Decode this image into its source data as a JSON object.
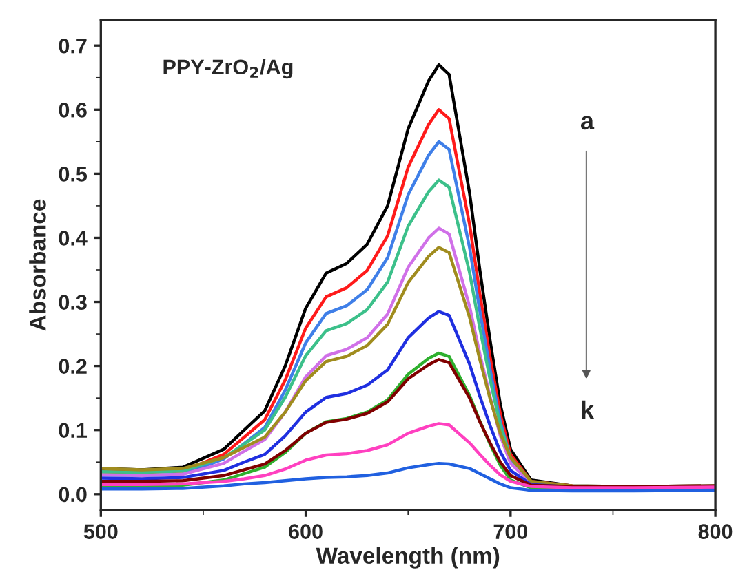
{
  "chart_data": {
    "type": "line",
    "xlabel": "Wavelength (nm)",
    "ylabel": "Absorbance",
    "xlim": [
      500,
      800
    ],
    "xticks": [
      500,
      600,
      700,
      800
    ],
    "ylim": [
      -0.025,
      0.74
    ],
    "yticks": [
      {
        "value": 0.0,
        "label": "0.0"
      },
      0.1,
      0.2,
      0.3,
      0.4,
      0.5,
      0.6,
      0.7
    ],
    "grid": false,
    "legend": false,
    "marker": "none",
    "line_style": "solid",
    "annotations": [
      "PPY-ZrO$_{2}$/Ag",
      "a",
      "k"
    ],
    "x": [
      500,
      520,
      540,
      560,
      570,
      580,
      590,
      600,
      610,
      620,
      630,
      640,
      650,
      660,
      665,
      670,
      680,
      685,
      690,
      695,
      700,
      710,
      730,
      760,
      800
    ],
    "series": [
      {
        "color": "#000000",
        "values": [
          0.04,
          0.038,
          0.042,
          0.07,
          0.1,
          0.13,
          0.2,
          0.29,
          0.345,
          0.36,
          0.39,
          0.45,
          0.57,
          0.645,
          0.67,
          0.655,
          0.47,
          0.35,
          0.24,
          0.14,
          0.07,
          0.022,
          0.013,
          0.012,
          0.013
        ]
      },
      {
        "color": "#ff1a1a",
        "values": [
          0.035,
          0.034,
          0.036,
          0.062,
          0.089,
          0.116,
          0.178,
          0.259,
          0.308,
          0.322,
          0.349,
          0.403,
          0.51,
          0.577,
          0.6,
          0.586,
          0.421,
          0.313,
          0.214,
          0.125,
          0.062,
          0.02,
          0.013,
          null,
          null
        ]
      },
      {
        "color": "#3f7fe8",
        "values": [
          0.03,
          0.029,
          0.031,
          0.055,
          0.079,
          0.104,
          0.162,
          0.236,
          0.282,
          0.294,
          0.319,
          0.369,
          0.467,
          0.529,
          0.55,
          0.538,
          0.385,
          0.286,
          0.195,
          0.113,
          0.055,
          0.018,
          0.012,
          0.011,
          0.012
        ]
      },
      {
        "color": "#3cc08a",
        "values": [
          0.035,
          0.034,
          0.036,
          0.057,
          0.078,
          0.1,
          0.151,
          0.216,
          0.255,
          0.266,
          0.288,
          0.331,
          0.418,
          0.472,
          0.49,
          0.479,
          0.346,
          0.259,
          0.179,
          0.107,
          0.057,
          0.02,
          null,
          null,
          null
        ]
      },
      {
        "color": "#d070e8",
        "values": [
          0.03,
          0.029,
          0.031,
          0.048,
          0.067,
          0.085,
          0.128,
          0.183,
          0.216,
          0.226,
          0.244,
          0.281,
          0.354,
          0.4,
          0.415,
          0.406,
          0.293,
          0.219,
          0.152,
          0.091,
          0.048,
          0.018,
          0.012,
          null,
          null
        ]
      },
      {
        "color": "#a08c1e",
        "values": [
          0.04,
          0.038,
          0.04,
          0.057,
          0.073,
          0.089,
          0.128,
          0.177,
          0.207,
          0.215,
          0.232,
          0.265,
          0.33,
          0.371,
          0.385,
          0.377,
          0.276,
          0.21,
          0.149,
          0.095,
          0.057,
          0.02,
          0.013,
          0.012,
          0.013
        ]
      },
      {
        "color": "#1f2fe0",
        "values": [
          0.025,
          0.024,
          0.026,
          0.037,
          0.05,
          0.062,
          0.091,
          0.128,
          0.151,
          0.157,
          0.17,
          0.194,
          0.244,
          0.275,
          0.285,
          0.279,
          0.203,
          0.153,
          0.107,
          0.066,
          0.037,
          0.015,
          0.011,
          0.01,
          0.011
        ]
      },
      {
        "color": "#2eb02e",
        "values": [
          0.012,
          0.012,
          0.014,
          0.022,
          0.032,
          0.042,
          0.065,
          0.095,
          0.113,
          0.118,
          0.128,
          0.147,
          0.187,
          0.212,
          0.22,
          0.215,
          0.154,
          0.114,
          0.078,
          0.045,
          0.022,
          0.01,
          0.008,
          null,
          null
        ]
      },
      {
        "color": "#800000",
        "values": [
          0.02,
          0.02,
          0.021,
          0.029,
          0.038,
          0.047,
          0.068,
          0.095,
          0.112,
          0.117,
          0.126,
          0.144,
          0.18,
          0.202,
          0.21,
          0.205,
          0.15,
          0.113,
          0.08,
          0.05,
          0.029,
          0.014,
          0.012,
          0.012,
          0.013
        ]
      },
      {
        "color": "#ff40c0",
        "values": [
          0.015,
          0.015,
          0.016,
          0.02,
          0.024,
          0.029,
          0.039,
          0.053,
          0.061,
          0.063,
          0.068,
          0.077,
          0.095,
          0.106,
          0.11,
          0.108,
          0.08,
          0.062,
          0.045,
          0.03,
          0.02,
          0.012,
          0.01,
          0.01,
          0.011
        ]
      },
      {
        "color": "#2060e0",
        "values": [
          0.008,
          0.008,
          0.009,
          0.013,
          0.016,
          0.018,
          0.021,
          0.024,
          0.026,
          0.027,
          0.029,
          0.033,
          0.041,
          0.046,
          0.048,
          0.047,
          0.04,
          0.032,
          0.024,
          0.016,
          0.01,
          0.006,
          0.005,
          0.005,
          0.006
        ]
      }
    ]
  }
}
